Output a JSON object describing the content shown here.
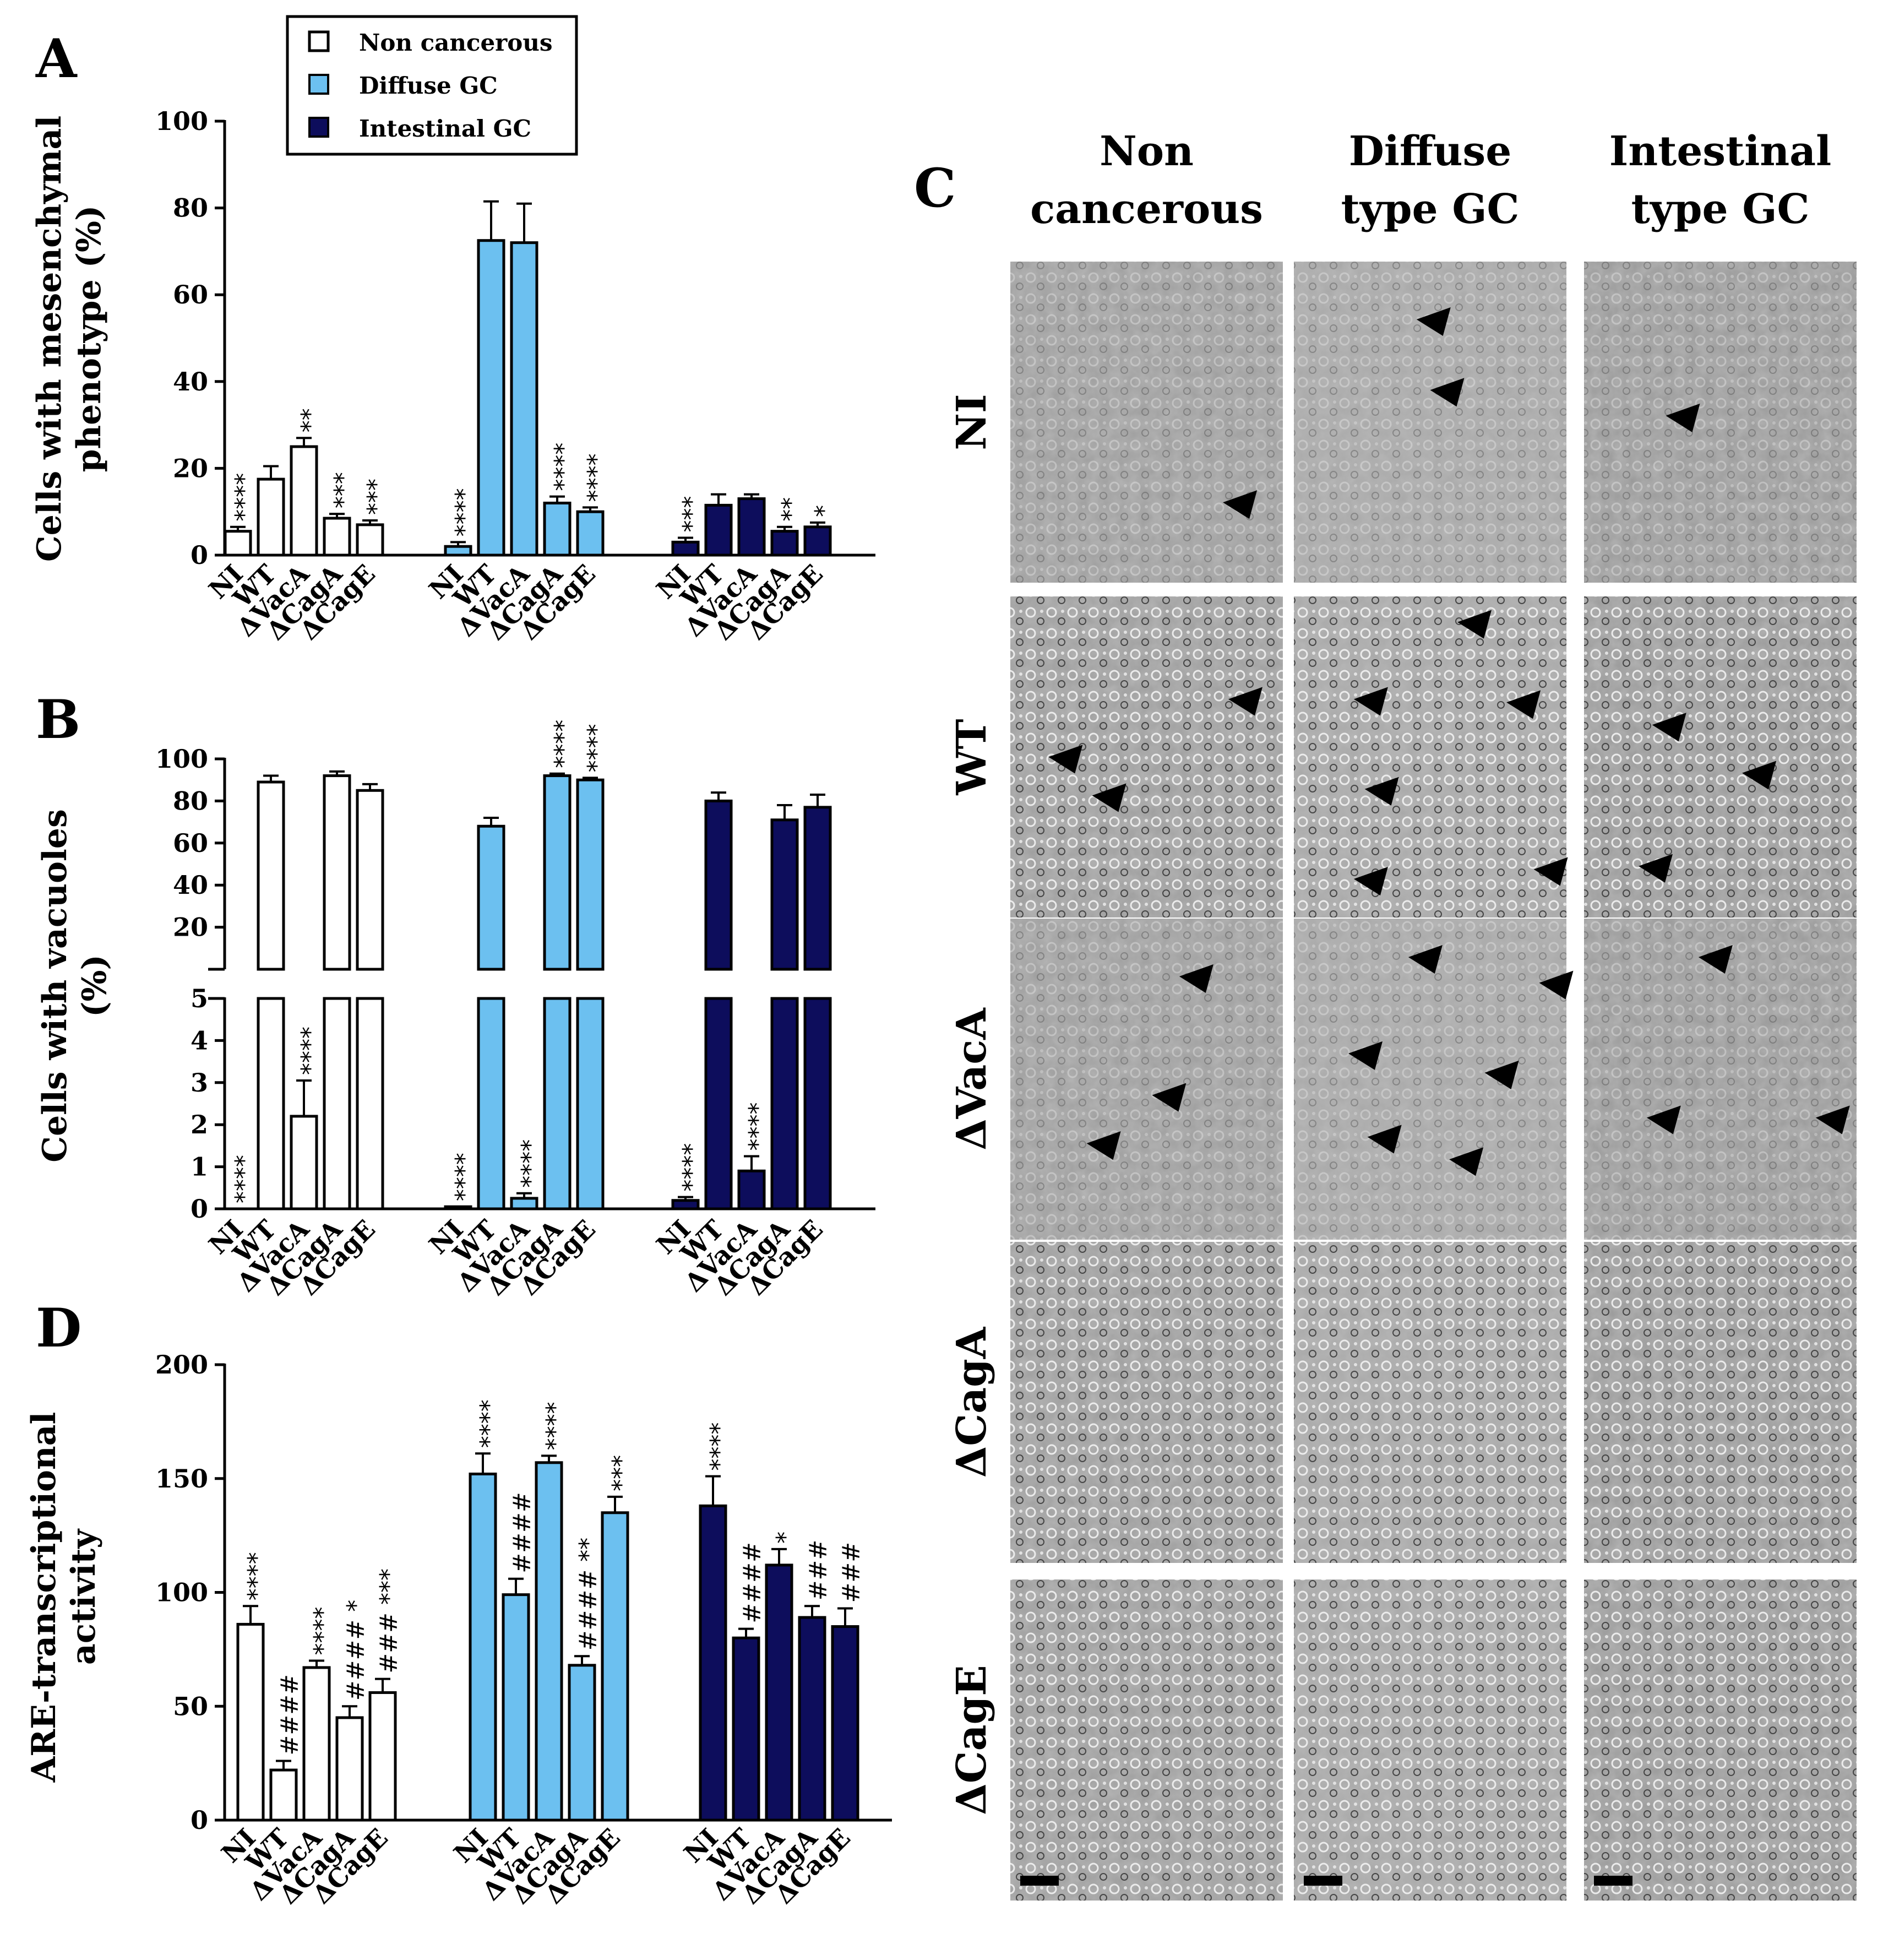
{
  "panels": {
    "A": "A",
    "B": "B",
    "C": "C",
    "D": "D"
  },
  "legend": [
    {
      "label": "Non cancerous",
      "color": "#ffffff"
    },
    {
      "label": "Diffuse  GC",
      "color": "#6cc0f0"
    },
    {
      "label": "Intestinal GC",
      "color": "#0d0d5c"
    }
  ],
  "colors": {
    "non_cancerous": "#ffffff",
    "diffuse": "#6cc0f0",
    "intestinal": "#0d0d5c",
    "axis": "#000000"
  },
  "chart_data": [
    {
      "panel": "A",
      "type": "bar",
      "ylabel": [
        "Cells with mesenchymal",
        "phenotype (%)"
      ],
      "ylim": [
        0,
        100
      ],
      "yticks": [
        0,
        20,
        40,
        60,
        80,
        100
      ],
      "categories": [
        "NI",
        "WT",
        "ΔVacA",
        "ΔCagA",
        "ΔCagE"
      ],
      "series": [
        {
          "name": "Non cancerous",
          "values": [
            5.5,
            17.5,
            25,
            8.5,
            7
          ],
          "errors": [
            1,
            3,
            2,
            1,
            1
          ],
          "marks": [
            "****",
            "",
            "**",
            "***",
            "***"
          ]
        },
        {
          "name": "Diffuse  GC",
          "values": [
            2,
            72.5,
            72,
            12,
            10
          ],
          "errors": [
            1,
            9,
            9,
            1.5,
            1
          ],
          "marks": [
            "****",
            "",
            "",
            "****",
            "****"
          ]
        },
        {
          "name": "Intestinal GC",
          "values": [
            3,
            11.5,
            13,
            5.5,
            6.5
          ],
          "errors": [
            1,
            2.5,
            1,
            1,
            1
          ],
          "marks": [
            "***",
            "",
            "",
            "**",
            "*"
          ]
        }
      ]
    },
    {
      "panel": "B",
      "type": "bar",
      "ylabel": [
        "Cells with vacuoles",
        "(%)"
      ],
      "y_break": true,
      "upper_yticks": [
        20,
        40,
        60,
        80,
        100
      ],
      "lower_yticks": [
        0,
        1,
        2,
        3,
        4,
        5
      ],
      "categories": [
        "NI",
        "WT",
        "ΔVacA",
        "ΔCagA",
        "ΔCagE"
      ],
      "series": [
        {
          "name": "Non cancerous",
          "values": [
            0,
            89,
            2.2,
            92,
            85
          ],
          "errors": [
            0,
            3,
            0.85,
            2,
            3
          ],
          "marks": [
            "****",
            "",
            "****",
            "",
            ""
          ]
        },
        {
          "name": "Diffuse  GC",
          "values": [
            0.05,
            68,
            0.25,
            92,
            90
          ],
          "errors": [
            0,
            4,
            0.12,
            1,
            1
          ],
          "marks": [
            "****",
            "",
            "****",
            "****",
            "****"
          ]
        },
        {
          "name": "Intestinal GC",
          "values": [
            0.2,
            80,
            0.9,
            71,
            77
          ],
          "errors": [
            0.08,
            4,
            0.35,
            7,
            6
          ],
          "marks": [
            "****",
            "",
            "****",
            "",
            ""
          ]
        }
      ]
    },
    {
      "panel": "D",
      "type": "bar",
      "ylabel": [
        "ARE-transcriptional",
        "activity"
      ],
      "ylim": [
        0,
        200
      ],
      "yticks": [
        0,
        50,
        100,
        150,
        200
      ],
      "categories": [
        "NI",
        "WT",
        "ΔVacA",
        "ΔCagA",
        "ΔCagE"
      ],
      "series": [
        {
          "name": "Non cancerous",
          "values": [
            86,
            22,
            67,
            45,
            56
          ],
          "errors": [
            8,
            4,
            3,
            5,
            6
          ],
          "marks": [
            "****",
            "####",
            "****",
            "#### *",
            "### ***"
          ]
        },
        {
          "name": "Diffuse  GC",
          "values": [
            152,
            99,
            157,
            68,
            135
          ],
          "errors": [
            9,
            7,
            3,
            4,
            7
          ],
          "marks": [
            "****",
            "####",
            "****",
            "#### **",
            "***"
          ]
        },
        {
          "name": "Intestinal GC",
          "values": [
            138,
            80,
            112,
            89,
            85
          ],
          "errors": [
            13,
            4,
            7,
            5,
            8
          ],
          "marks": [
            "****",
            "####",
            "*",
            "###",
            "###"
          ]
        }
      ]
    }
  ],
  "micrographs": {
    "columns": [
      [
        "Non",
        "cancerous"
      ],
      [
        "Diffuse",
        "type GC"
      ],
      [
        "Intestinal",
        "type GC"
      ]
    ],
    "rows": [
      "NI",
      "WT",
      "ΔVacA",
      "ΔCagA",
      "ΔCagE"
    ]
  }
}
